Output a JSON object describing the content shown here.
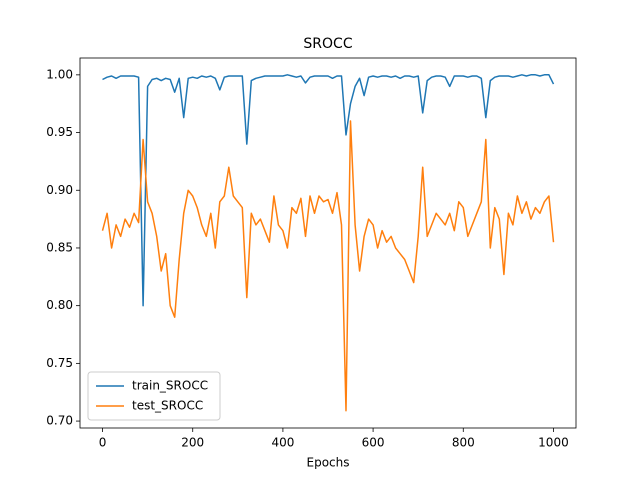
{
  "chart_data": {
    "type": "line",
    "title": "SROCC",
    "xlabel": "Epochs",
    "x": [
      0,
      10,
      20,
      30,
      40,
      50,
      60,
      70,
      80,
      90,
      100,
      110,
      120,
      130,
      140,
      150,
      160,
      170,
      180,
      190,
      200,
      210,
      220,
      230,
      240,
      250,
      260,
      270,
      280,
      290,
      300,
      310,
      320,
      330,
      340,
      350,
      360,
      370,
      380,
      390,
      400,
      410,
      420,
      430,
      440,
      450,
      460,
      470,
      480,
      490,
      500,
      510,
      520,
      530,
      540,
      550,
      560,
      570,
      580,
      590,
      600,
      610,
      620,
      630,
      640,
      650,
      660,
      670,
      680,
      690,
      700,
      710,
      720,
      730,
      740,
      750,
      760,
      770,
      780,
      790,
      800,
      810,
      820,
      830,
      840,
      850,
      860,
      870,
      880,
      890,
      900,
      910,
      920,
      930,
      940,
      950,
      960,
      970,
      980,
      990,
      1000
    ],
    "series": [
      {
        "name": "train_SROCC",
        "color": "#1f77b4",
        "values": [
          0.996,
          0.998,
          0.999,
          0.997,
          0.999,
          0.999,
          0.999,
          0.999,
          0.998,
          0.8,
          0.99,
          0.996,
          0.997,
          0.995,
          0.997,
          0.996,
          0.985,
          0.997,
          0.963,
          0.997,
          0.998,
          0.997,
          0.999,
          0.998,
          0.999,
          0.997,
          0.987,
          0.998,
          0.999,
          0.999,
          0.999,
          0.999,
          0.94,
          0.995,
          0.997,
          0.998,
          0.999,
          0.999,
          0.999,
          0.999,
          0.999,
          1.0,
          0.999,
          0.998,
          0.999,
          0.993,
          0.998,
          0.999,
          0.999,
          0.999,
          0.999,
          0.997,
          0.999,
          0.999,
          0.948,
          0.975,
          0.99,
          0.997,
          0.982,
          0.998,
          0.999,
          0.998,
          0.999,
          0.999,
          0.998,
          0.999,
          0.997,
          0.999,
          0.999,
          0.998,
          0.999,
          0.967,
          0.995,
          0.998,
          0.999,
          0.999,
          0.998,
          0.99,
          0.999,
          0.999,
          0.999,
          0.998,
          0.999,
          0.999,
          0.997,
          0.963,
          0.995,
          0.998,
          0.999,
          0.999,
          0.999,
          0.998,
          0.999,
          1.0,
          0.999,
          1.0,
          1.0,
          0.999,
          1.0,
          1.0,
          0.992
        ]
      },
      {
        "name": "test_SROCC",
        "color": "#ff7f0e",
        "values": [
          0.865,
          0.88,
          0.85,
          0.87,
          0.86,
          0.875,
          0.868,
          0.88,
          0.872,
          0.944,
          0.89,
          0.88,
          0.86,
          0.83,
          0.845,
          0.8,
          0.79,
          0.84,
          0.88,
          0.9,
          0.895,
          0.885,
          0.87,
          0.86,
          0.88,
          0.85,
          0.89,
          0.895,
          0.92,
          0.895,
          0.89,
          0.885,
          0.807,
          0.88,
          0.87,
          0.875,
          0.865,
          0.855,
          0.895,
          0.87,
          0.865,
          0.85,
          0.885,
          0.88,
          0.893,
          0.86,
          0.895,
          0.88,
          0.895,
          0.89,
          0.892,
          0.88,
          0.898,
          0.87,
          0.709,
          0.96,
          0.87,
          0.83,
          0.86,
          0.875,
          0.87,
          0.85,
          0.865,
          0.855,
          0.86,
          0.85,
          0.845,
          0.84,
          0.83,
          0.82,
          0.86,
          0.92,
          0.86,
          0.87,
          0.88,
          0.875,
          0.87,
          0.88,
          0.865,
          0.89,
          0.885,
          0.86,
          0.87,
          0.88,
          0.89,
          0.944,
          0.85,
          0.885,
          0.875,
          0.827,
          0.88,
          0.87,
          0.895,
          0.88,
          0.89,
          0.875,
          0.885,
          0.88,
          0.89,
          0.895,
          0.855
        ]
      }
    ],
    "xlim": [
      -50,
      1050
    ],
    "xticks": [
      0,
      200,
      400,
      600,
      800,
      1000
    ],
    "ylim": [
      0.694,
      1.0146
    ],
    "yticks": [
      {
        "value": 0.7,
        "label": "0.70"
      },
      {
        "value": 0.75,
        "label": "0.75"
      },
      {
        "value": 0.8,
        "label": "0.80"
      },
      {
        "value": 0.85,
        "label": "0.85"
      },
      {
        "value": 0.9,
        "label": "0.90"
      },
      {
        "value": 0.95,
        "label": "0.95"
      },
      {
        "value": 1.0,
        "label": "1.00"
      }
    ],
    "legend": "lower left"
  }
}
